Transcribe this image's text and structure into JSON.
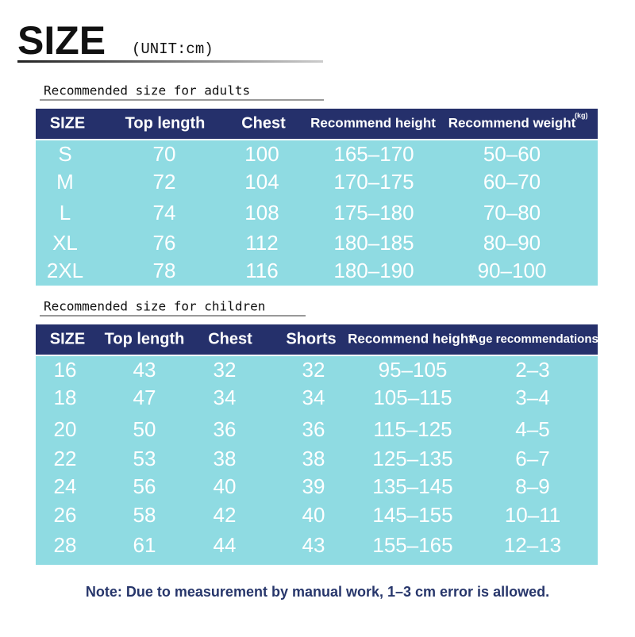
{
  "header": {
    "title": "SIZE",
    "unit": "(UNIT:cm)"
  },
  "adults": {
    "caption": "Recommended size for adults",
    "columns": [
      "SIZE",
      "Top length",
      "Chest",
      "Recommend height",
      "Recommend weight"
    ],
    "weight_unit": "(kg)",
    "rows": [
      [
        "S",
        "70",
        "100",
        "165–170",
        "50–60"
      ],
      [
        "M",
        "72",
        "104",
        "170–175",
        "60–70"
      ],
      [
        "L",
        "74",
        "108",
        "175–180",
        "70–80"
      ],
      [
        "XL",
        "76",
        "112",
        "180–185",
        "80–90"
      ],
      [
        "2XL",
        "78",
        "116",
        "180–190",
        "90–100"
      ]
    ]
  },
  "children": {
    "caption": "Recommended size for children",
    "columns": [
      "SIZE",
      "Top length",
      "Chest",
      "Shorts",
      "Recommend height",
      "Age recommendations"
    ],
    "rows": [
      [
        "16",
        "43",
        "32",
        "32",
        "95–105",
        "2–3"
      ],
      [
        "18",
        "47",
        "34",
        "34",
        "105–115",
        "3–4"
      ],
      [
        "20",
        "50",
        "36",
        "36",
        "115–125",
        "4–5"
      ],
      [
        "22",
        "53",
        "38",
        "38",
        "125–135",
        "6–7"
      ],
      [
        "24",
        "56",
        "40",
        "39",
        "135–145",
        "8–9"
      ],
      [
        "26",
        "58",
        "42",
        "40",
        "145–155",
        "10–11"
      ],
      [
        "28",
        "61",
        "44",
        "43",
        "155–165",
        "12–13"
      ]
    ]
  },
  "note": "Note: Due to measurement by manual work, 1–3 cm error is allowed."
}
